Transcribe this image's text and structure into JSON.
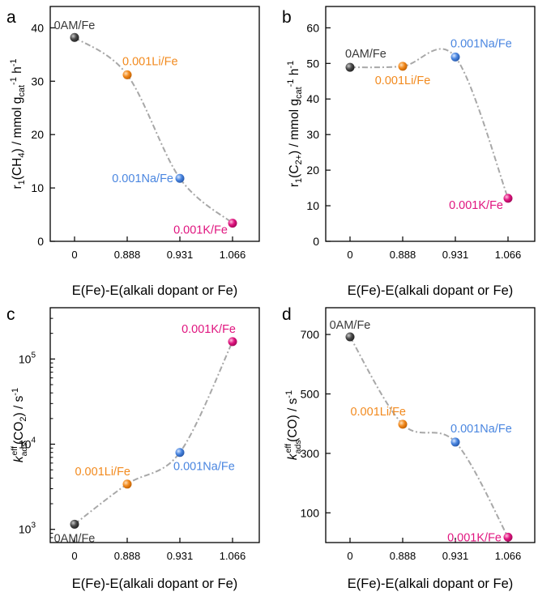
{
  "figure": {
    "marker_colors": {
      "0AM/Fe": "#3a3a3a",
      "0.001Li/Fe": "#f28a1e",
      "0.001Na/Fe": "#4a86e0",
      "0.001K/Fe": "#e0157f"
    },
    "curve_color": "#a8a8a8"
  },
  "chart_data": [
    {
      "panel": "a",
      "type": "scatter",
      "categories": [
        "0",
        "0.888",
        "0.931",
        "1.066"
      ],
      "xlabel": "E(Fe)-E(alkali dopant or Fe)",
      "ylabel": "r1(CH4) / mmol gcat-1 h-1",
      "yscale": "linear",
      "ylim": [
        0,
        44
      ],
      "yticks": [
        0,
        10,
        20,
        30,
        40
      ],
      "ytick_labels": [
        "0",
        "10",
        "20",
        "30",
        "40"
      ],
      "points": [
        {
          "name": "0AM/Fe",
          "label": "0AM/Fe",
          "x": 0,
          "y": 38.2,
          "label_pos": "above"
        },
        {
          "name": "0.001Li/Fe",
          "label": "0.001Li/Fe",
          "x": 1,
          "y": 31.2,
          "label_pos": "upper-right"
        },
        {
          "name": "0.001Na/Fe",
          "label": "0.001Na/Fe",
          "x": 2,
          "y": 11.8,
          "label_pos": "left"
        },
        {
          "name": "0.001K/Fe",
          "label": "0.001K/Fe",
          "x": 3,
          "y": 3.4,
          "label_pos": "left-low"
        }
      ]
    },
    {
      "panel": "b",
      "type": "scatter",
      "categories": [
        "0",
        "0.888",
        "0.931",
        "1.066"
      ],
      "xlabel": "E(Fe)-E(alkali dopant or Fe)",
      "ylabel": "r1(C2+) / mmol gcat-1 h-1",
      "yscale": "linear",
      "ylim": [
        0,
        66
      ],
      "yticks": [
        0,
        10,
        20,
        30,
        40,
        50,
        60
      ],
      "ytick_labels": [
        "0",
        "10",
        "20",
        "30",
        "40",
        "50",
        "60"
      ],
      "points": [
        {
          "name": "0AM/Fe",
          "label": "0AM/Fe",
          "x": 0,
          "y": 48.9,
          "label_pos": "upper-right"
        },
        {
          "name": "0.001Li/Fe",
          "label": "0.001Li/Fe",
          "x": 1,
          "y": 49.2,
          "label_pos": "below"
        },
        {
          "name": "0.001Na/Fe",
          "label": "0.001Na/Fe",
          "x": 2,
          "y": 51.8,
          "label_pos": "upper-right"
        },
        {
          "name": "0.001K/Fe",
          "label": "0.001K/Fe",
          "x": 3,
          "y": 12.1,
          "label_pos": "left-low"
        }
      ]
    },
    {
      "panel": "c",
      "type": "scatter",
      "categories": [
        "0",
        "0.888",
        "0.931",
        "1.066"
      ],
      "xlabel": "E(Fe)-E(alkali dopant or Fe)",
      "ylabel": "k_ads^eff(CO2) / s-1",
      "yscale": "log",
      "ylim": [
        700,
        400000
      ],
      "yticks": [
        1000,
        10000,
        100000
      ],
      "ytick_labels": [
        "10",
        "10",
        "10"
      ],
      "ytick_exponents": [
        "3",
        "4",
        "5"
      ],
      "points": [
        {
          "name": "0AM/Fe",
          "label": "0AM/Fe",
          "x": 0,
          "y": 1150,
          "label_pos": "below"
        },
        {
          "name": "0.001Li/Fe",
          "label": "0.001Li/Fe",
          "x": 1,
          "y": 3400,
          "label_pos": "upper-left"
        },
        {
          "name": "0.001Na/Fe",
          "label": "0.001Na/Fe",
          "x": 2,
          "y": 8000,
          "label_pos": "lower-right"
        },
        {
          "name": "0.001K/Fe",
          "label": "0.001K/Fe",
          "x": 3,
          "y": 160000,
          "label_pos": "upper-left"
        }
      ]
    },
    {
      "panel": "d",
      "type": "scatter",
      "categories": [
        "0",
        "0.888",
        "0.931",
        "1.066"
      ],
      "xlabel": "E(Fe)-E(alkali dopant or Fe)",
      "ylabel": "k_ads^eff(CO) / s-1",
      "yscale": "linear",
      "ylim": [
        0,
        790
      ],
      "yticks": [
        100,
        300,
        500,
        700
      ],
      "ytick_labels": [
        "100",
        "300",
        "500",
        "700"
      ],
      "points": [
        {
          "name": "0AM/Fe",
          "label": "0AM/Fe",
          "x": 0,
          "y": 692,
          "label_pos": "above"
        },
        {
          "name": "0.001Li/Fe",
          "label": "0.001Li/Fe",
          "x": 1,
          "y": 398,
          "label_pos": "upper-left"
        },
        {
          "name": "0.001Na/Fe",
          "label": "0.001Na/Fe",
          "x": 2,
          "y": 338,
          "label_pos": "upper-right"
        },
        {
          "name": "0.001K/Fe",
          "label": "0.001K/Fe",
          "x": 3,
          "y": 18,
          "label_pos": "left"
        }
      ]
    }
  ]
}
